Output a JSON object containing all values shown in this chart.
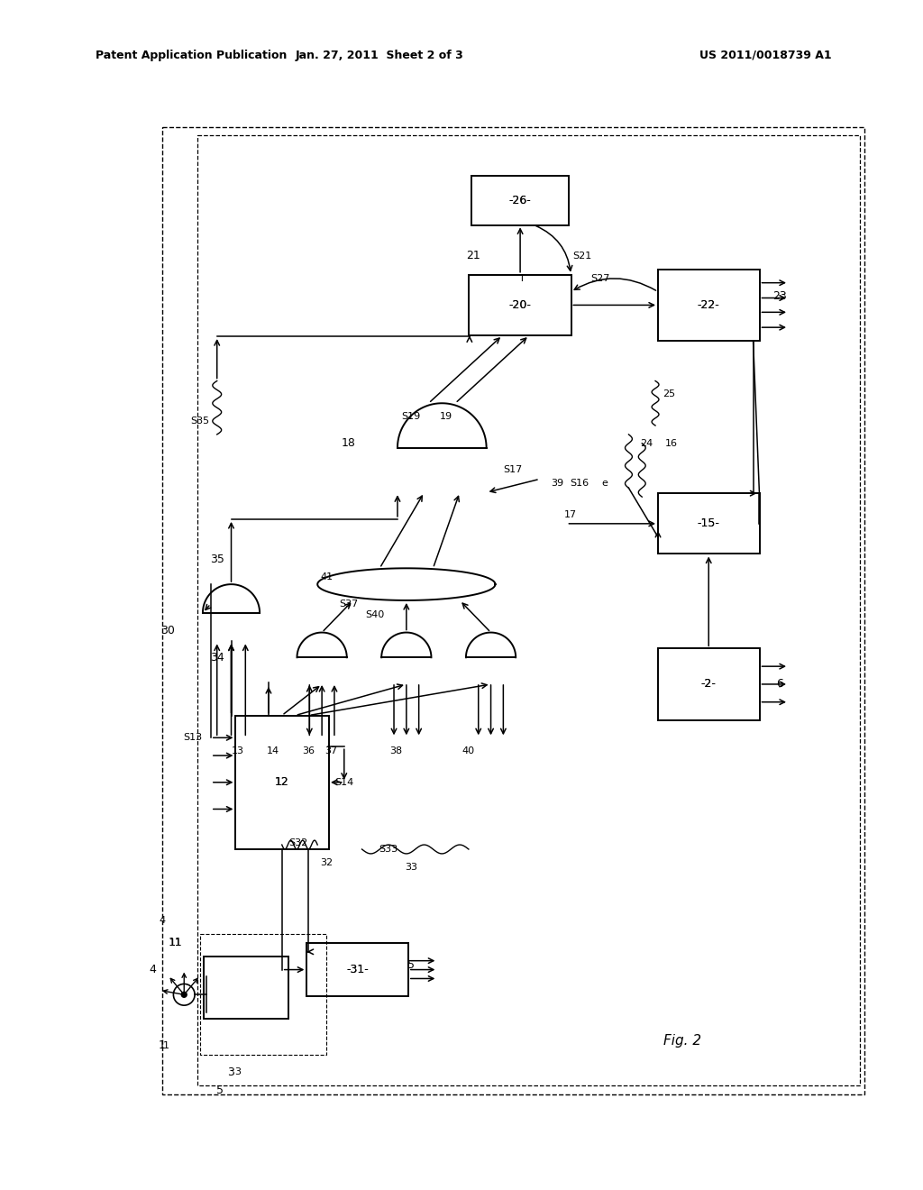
{
  "bg_color": "#ffffff",
  "header_left": "Patent Application Publication",
  "header_mid": "Jan. 27, 2011  Sheet 2 of 3",
  "header_right": "US 2011/0018739 A1"
}
